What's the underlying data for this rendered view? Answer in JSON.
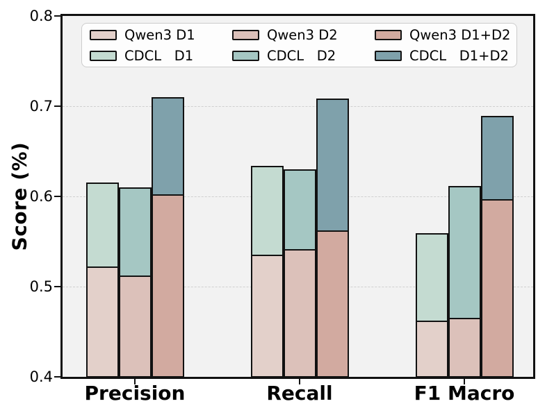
{
  "chart_data": {
    "type": "bar",
    "title": "",
    "ylabel": "Score (%)",
    "categories": [
      "Precision",
      "Recall",
      "F1 Macro"
    ],
    "series": [
      {
        "name": "Qwen3 D1",
        "color": "#e3d0ca",
        "values": [
          0.523,
          0.536,
          0.463
        ]
      },
      {
        "name": "Qwen3 D2",
        "color": "#dcc1ba",
        "values": [
          0.513,
          0.542,
          0.466
        ]
      },
      {
        "name": "Qwen3 D1+D2",
        "color": "#d2aaa0",
        "values": [
          0.603,
          0.563,
          0.598
        ]
      },
      {
        "name": "CDCL D1",
        "color": "#c4dbd1",
        "values": [
          0.616,
          0.635,
          0.56
        ]
      },
      {
        "name": "CDCL D2",
        "color": "#a5c7c3",
        "values": [
          0.611,
          0.631,
          0.612
        ]
      },
      {
        "name": "CDCL D1+D2",
        "color": "#7fa1ab",
        "values": [
          0.711,
          0.709,
          0.69
        ]
      }
    ],
    "ylim": [
      0.4,
      0.8
    ],
    "yticks": [
      "0.4",
      "0.5",
      "0.6",
      "0.7",
      "0.8"
    ],
    "gridlines": [
      0.5,
      0.6,
      0.7
    ],
    "grid": "horizontal dashed",
    "legend_position": "upper center inside axes",
    "bar_style": "overlaid pairs per dataset: CDCL bar behind, Qwen3 bar in front",
    "colors": {
      "plot_background": "#f2f2f2",
      "spine": "#111111",
      "bar_edge": "#111111",
      "gridline": "#cfcfcf"
    }
  },
  "legend": {
    "items": [
      {
        "label": "Qwen3 D1",
        "color": "#e3d0ca"
      },
      {
        "label": "Qwen3 D2",
        "color": "#dcc1ba"
      },
      {
        "label": "Qwen3 D1+D2",
        "color": "#d2aaa0"
      },
      {
        "label": "CDCL   D1",
        "color": "#c4dbd1"
      },
      {
        "label": "CDCL   D2",
        "color": "#a5c7c3"
      },
      {
        "label": "CDCL   D1+D2",
        "color": "#7fa1ab"
      }
    ]
  }
}
